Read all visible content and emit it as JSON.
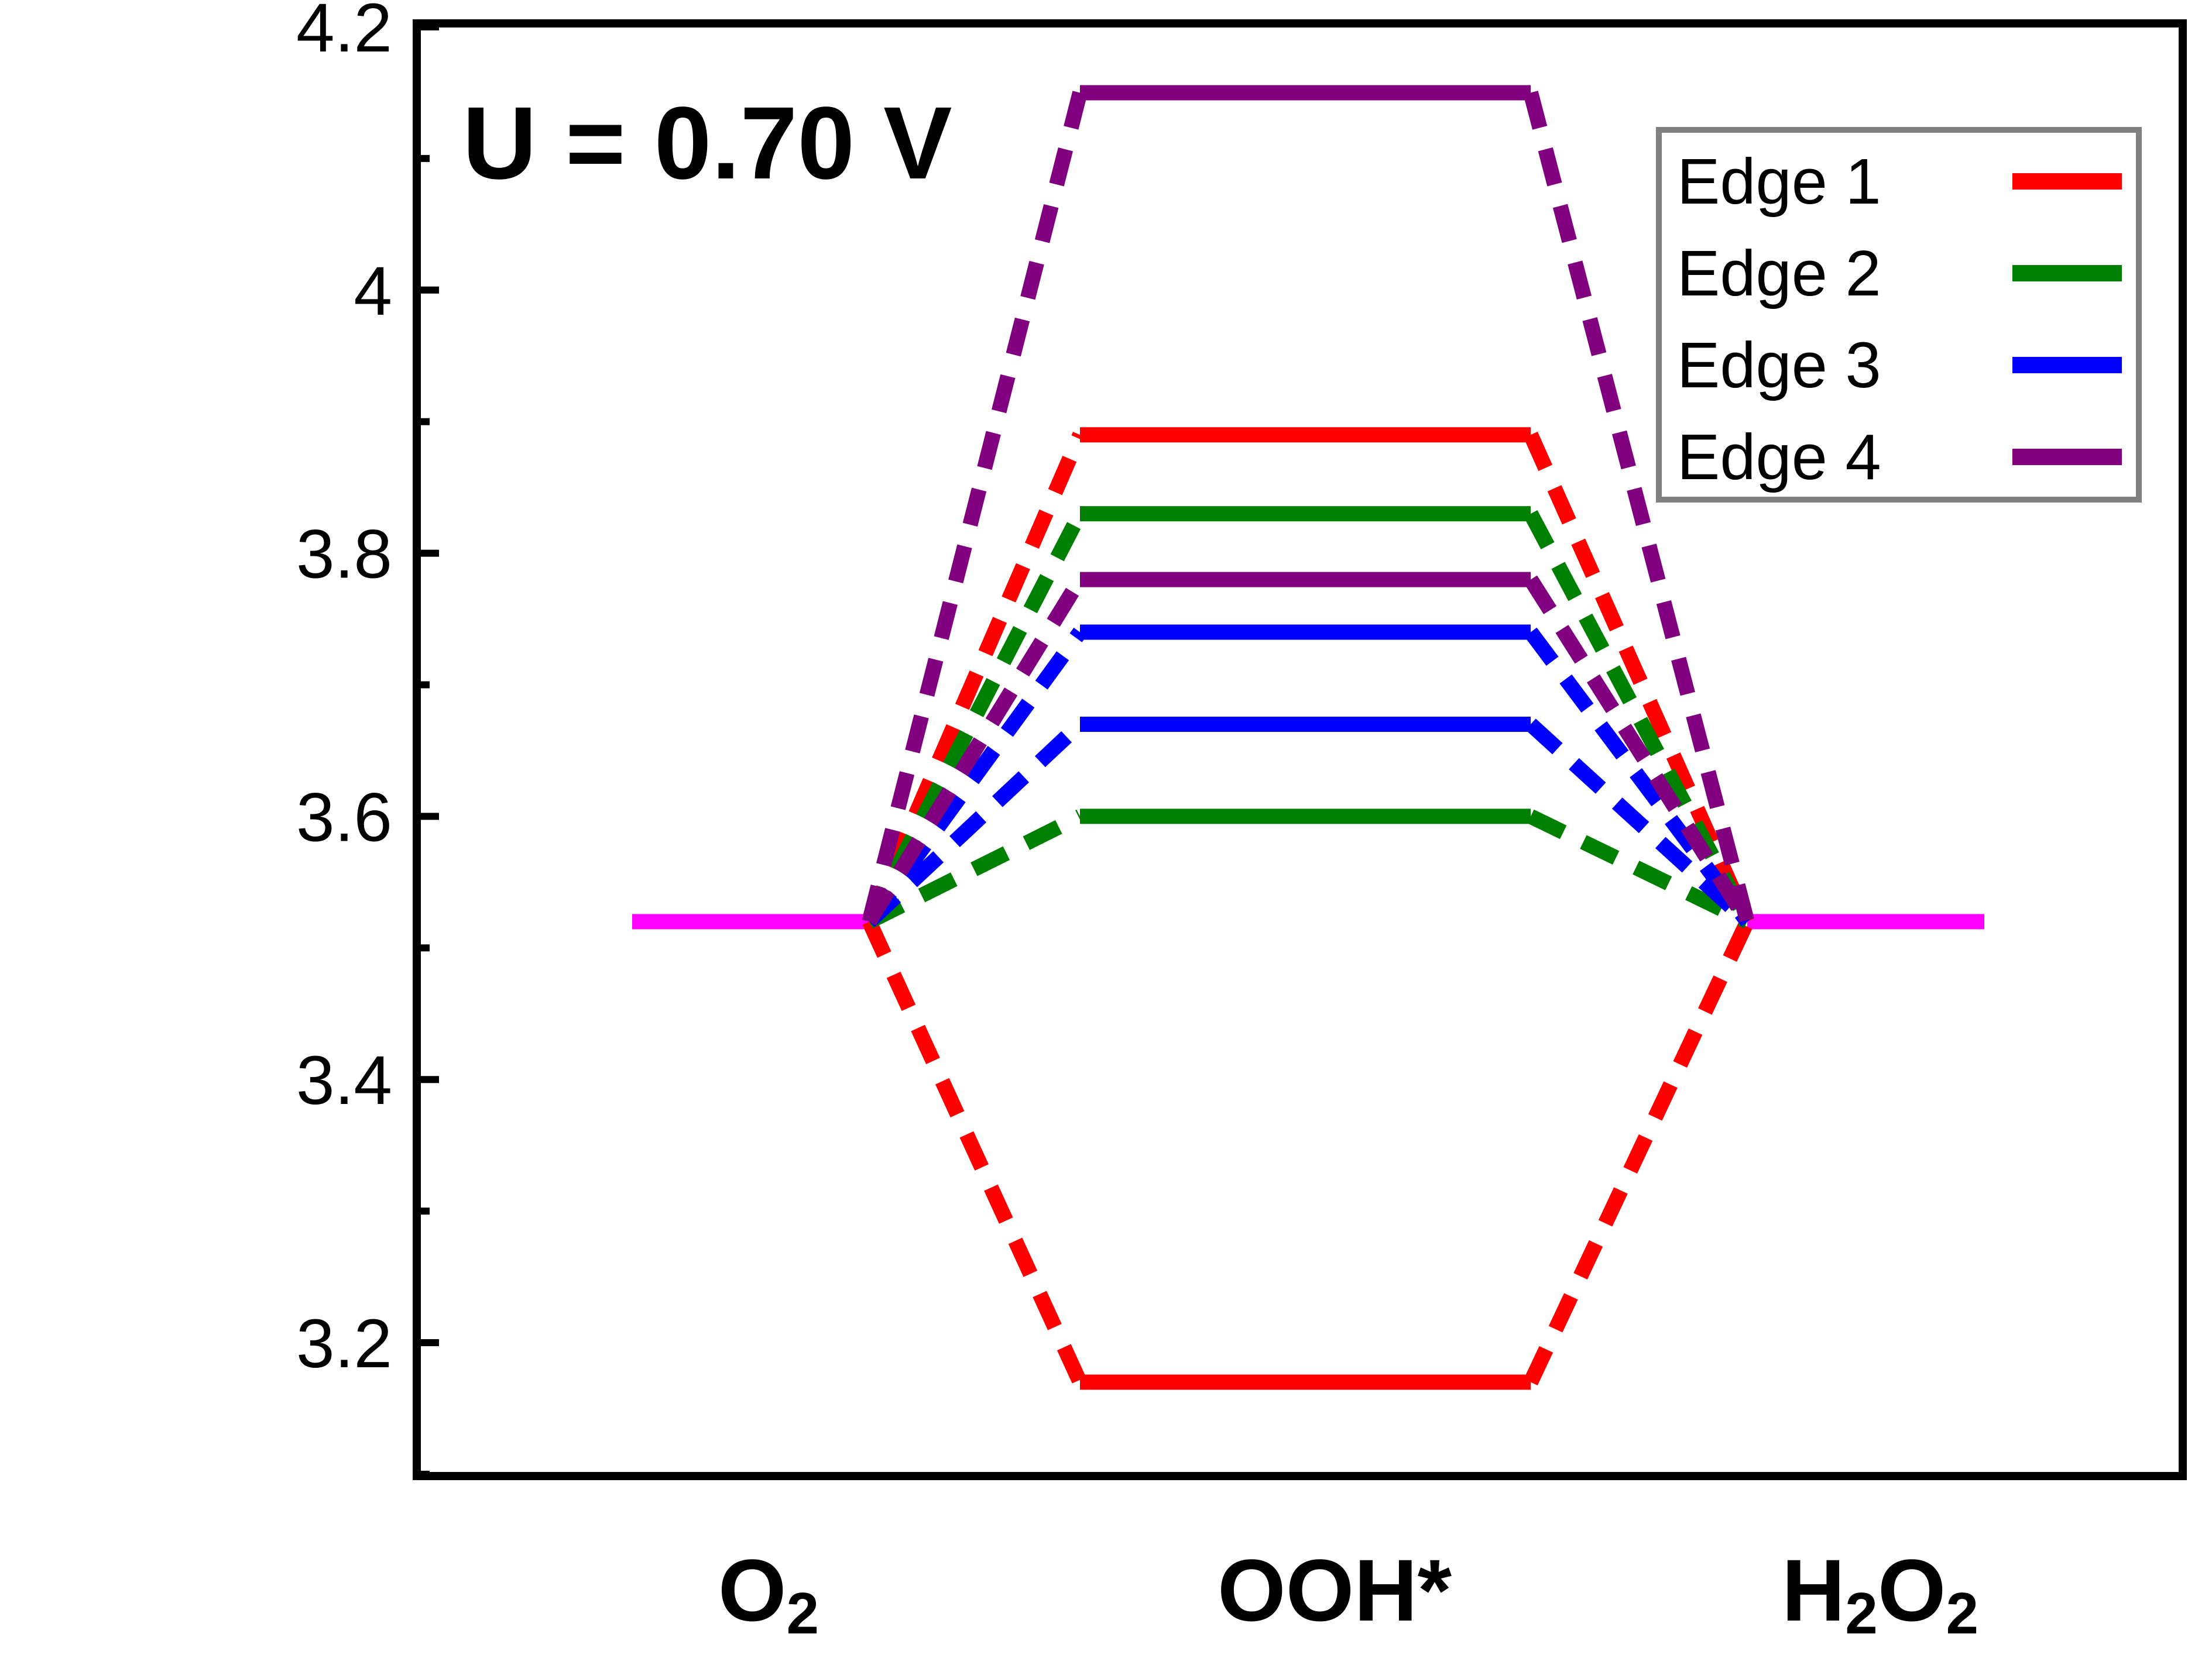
{
  "chart_data": {
    "type": "line",
    "annotation": "U = 0.70 V",
    "categories": [
      "O2",
      "OOH*",
      "H2O2"
    ],
    "category_labels": [
      {
        "main": "O",
        "sub": "2",
        "tail": ""
      },
      {
        "main": "OOH*",
        "sub": "",
        "tail": ""
      },
      {
        "main": "H",
        "sub": "2",
        "tail": "O",
        "sub2": "2"
      }
    ],
    "xlabel": "",
    "ylabel": "",
    "ylim": [
      3.09,
      4.22
    ],
    "yticks": [
      3.2,
      3.4,
      3.6,
      3.8,
      4.0,
      4.2
    ],
    "ytick_labels": [
      "3.2",
      "3.4",
      "3.6",
      "3.8",
      "4",
      "4.2"
    ],
    "y_minor_step": 0.1,
    "reference": {
      "color": "#ff00ff",
      "y": 3.52
    },
    "series": [
      {
        "name": "Edge 1",
        "color": "#ff0000",
        "ooh_values": [
          3.89,
          3.17
        ]
      },
      {
        "name": "Edge 2",
        "color": "#008000",
        "ooh_values": [
          3.83,
          3.6
        ]
      },
      {
        "name": "Edge 3",
        "color": "#0000ff",
        "ooh_values": [
          3.74,
          3.67
        ]
      },
      {
        "name": "Edge 4",
        "color": "#800080",
        "ooh_values": [
          4.15,
          3.78
        ]
      }
    ],
    "grid": false,
    "legend_position": "top-right"
  }
}
